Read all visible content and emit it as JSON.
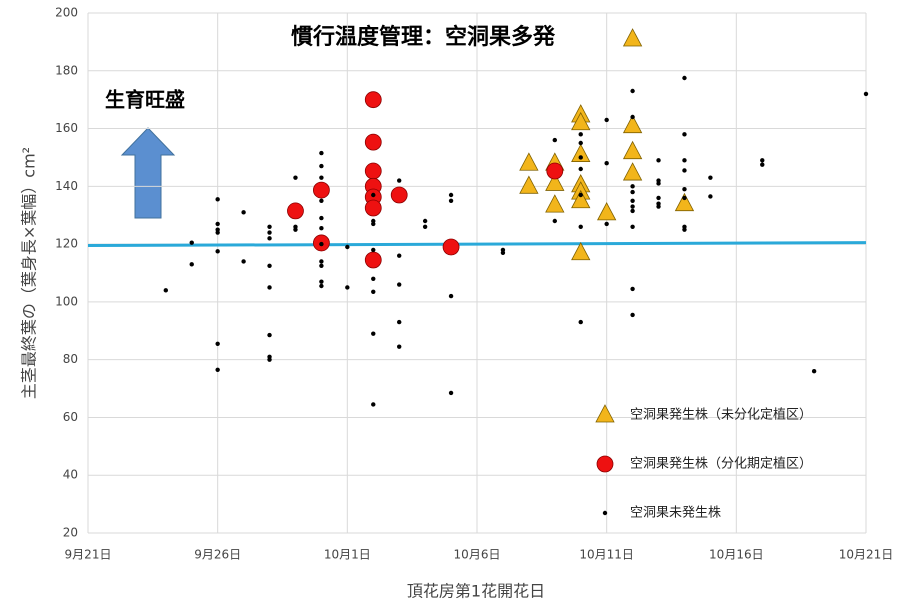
{
  "chart_data": {
    "type": "scatter",
    "title": "慣行温度管理：空洞果多発",
    "annotation": "生育旺盛",
    "x_label": "頂花房第1花開花日",
    "y_label": "主茎最終葉の（葉身長×葉幅）cm²",
    "xlim": [
      0,
      30
    ],
    "xticks": [
      {
        "value": 0,
        "label": "9月21日"
      },
      {
        "value": 5,
        "label": "9月26日"
      },
      {
        "value": 10,
        "label": "10月1日"
      },
      {
        "value": 15,
        "label": "10月6日"
      },
      {
        "value": 20,
        "label": "10月11日"
      },
      {
        "value": 25,
        "label": "10月16日"
      },
      {
        "value": 30,
        "label": "10月21日"
      }
    ],
    "ylim": [
      20,
      200
    ],
    "yticks": [
      20,
      40,
      60,
      80,
      100,
      120,
      140,
      160,
      180,
      200
    ],
    "grid": true,
    "legend": "lower right",
    "reference_line": {
      "color": "#2aa9d9",
      "x": [
        0,
        30
      ],
      "y": [
        119.5,
        120.5
      ]
    },
    "series": [
      {
        "name": "空洞果発生株（未分化定植区）",
        "marker": "triangle",
        "color": "#f2b51b",
        "x": [
          17,
          17,
          18,
          18,
          18,
          19,
          19,
          19,
          19,
          19,
          19,
          19,
          20,
          21,
          21,
          21,
          21,
          23
        ],
        "values": [
          148,
          140,
          148,
          141,
          133.5,
          164.7,
          162,
          151,
          140.5,
          138,
          135,
          117,
          130.8,
          191,
          161,
          152,
          144.6,
          134
        ]
      },
      {
        "name": "空洞果発生株（分化期定植区）",
        "marker": "circle",
        "color": "#ee1111",
        "x": [
          8,
          9,
          9,
          11,
          11,
          11,
          11,
          11,
          11,
          11,
          12,
          14,
          18
        ],
        "values": [
          131.5,
          138.7,
          120.4,
          170,
          155.3,
          145.3,
          140,
          136.3,
          132.5,
          114.5,
          137,
          119,
          145.3
        ]
      },
      {
        "name": "空洞果未発生株",
        "marker": "dot",
        "color": "#000000",
        "x": [
          3,
          4,
          4,
          5,
          5,
          5,
          5,
          5,
          5,
          5,
          6,
          6,
          7,
          7,
          7,
          7,
          7,
          7,
          7,
          7,
          8,
          8,
          8,
          9,
          9,
          9,
          9,
          9,
          9,
          9,
          9,
          9,
          9,
          9,
          10,
          10,
          11,
          11,
          11,
          11,
          11,
          11,
          11,
          11,
          12,
          12,
          12,
          12,
          12,
          13,
          13,
          14,
          14,
          14,
          14,
          16,
          16,
          18,
          18,
          19,
          19,
          19,
          19,
          19,
          19,
          19,
          20,
          20,
          20,
          21,
          21,
          21,
          21,
          21,
          21,
          21,
          21,
          21,
          21,
          22,
          22,
          22,
          22,
          22,
          22,
          23,
          23,
          23,
          23,
          23,
          23,
          23,
          23,
          24,
          24,
          26,
          26,
          28,
          30
        ],
        "values": [
          104,
          120.5,
          113,
          135.5,
          127,
          125,
          124,
          117.5,
          85.5,
          76.5,
          131,
          114,
          126,
          124,
          122,
          112.5,
          105,
          88.5,
          81,
          80,
          143,
          126,
          125,
          151.5,
          147,
          143,
          135,
          129,
          125.5,
          120,
          114,
          112.5,
          107,
          105.5,
          119,
          105,
          137,
          128,
          127,
          118,
          108,
          103.5,
          89,
          64.5,
          142,
          116,
          106,
          93,
          84.5,
          128,
          126,
          137,
          135,
          102,
          68.5,
          118,
          117,
          156,
          128,
          158,
          155,
          150,
          146,
          137,
          126,
          93,
          163,
          148,
          127,
          173,
          164,
          140,
          138,
          135,
          133,
          131.5,
          126,
          104.5,
          95.5,
          149,
          142,
          141,
          136,
          134,
          133,
          177.5,
          158,
          149,
          145.5,
          139,
          136,
          126,
          125,
          143,
          136.5,
          149,
          147.5,
          76,
          172
        ]
      }
    ]
  }
}
